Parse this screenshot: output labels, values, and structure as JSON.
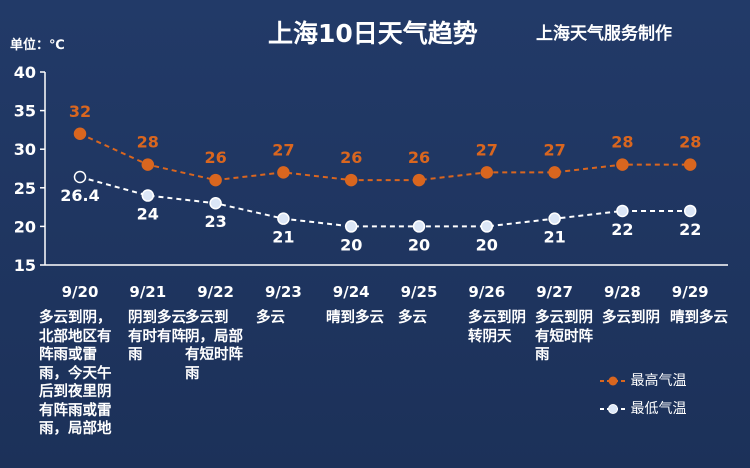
{
  "header": {
    "title": "上海10日天气趋势",
    "source": "上海天气服务制作",
    "unit": "单位：℃"
  },
  "colors": {
    "background": "#1f3560",
    "high": "#d9661f",
    "low": "#ffffff",
    "axis": "#ffffff"
  },
  "chart_data": {
    "type": "line",
    "x": [
      "9/20",
      "9/21",
      "9/22",
      "9/23",
      "9/24",
      "9/25",
      "9/26",
      "9/27",
      "9/28",
      "9/29"
    ],
    "yticks": [
      15,
      20,
      25,
      30,
      35,
      40
    ],
    "ylim": [
      15,
      40
    ],
    "series": [
      {
        "name": "最高气温",
        "values": [
          32,
          28,
          26,
          27,
          26,
          26,
          27,
          27,
          28,
          28
        ],
        "labels": [
          "32",
          "28",
          "26",
          "27",
          "26",
          "26",
          "27",
          "27",
          "28",
          "28"
        ]
      },
      {
        "name": "最低气温",
        "values": [
          26.4,
          24,
          23,
          21,
          20,
          20,
          20,
          21,
          22,
          22
        ],
        "labels": [
          "26.4",
          "24",
          "23",
          "21",
          "20",
          "20",
          "20",
          "21",
          "22",
          "22"
        ]
      }
    ],
    "legend_position": "bottom-right"
  },
  "weather": [
    "多云到阴，北部地区有阵雨或雷雨，今天午后到夜里阴有阵雨或雷雨，局部地",
    "阴到多云有时有阵雨",
    "多云到阴，局部有短时阵雨",
    "多云",
    "晴到多云",
    "多云",
    "多云到阴转阴天",
    "多云到阴有短时阵雨",
    "多云到阴",
    "晴到多云"
  ]
}
